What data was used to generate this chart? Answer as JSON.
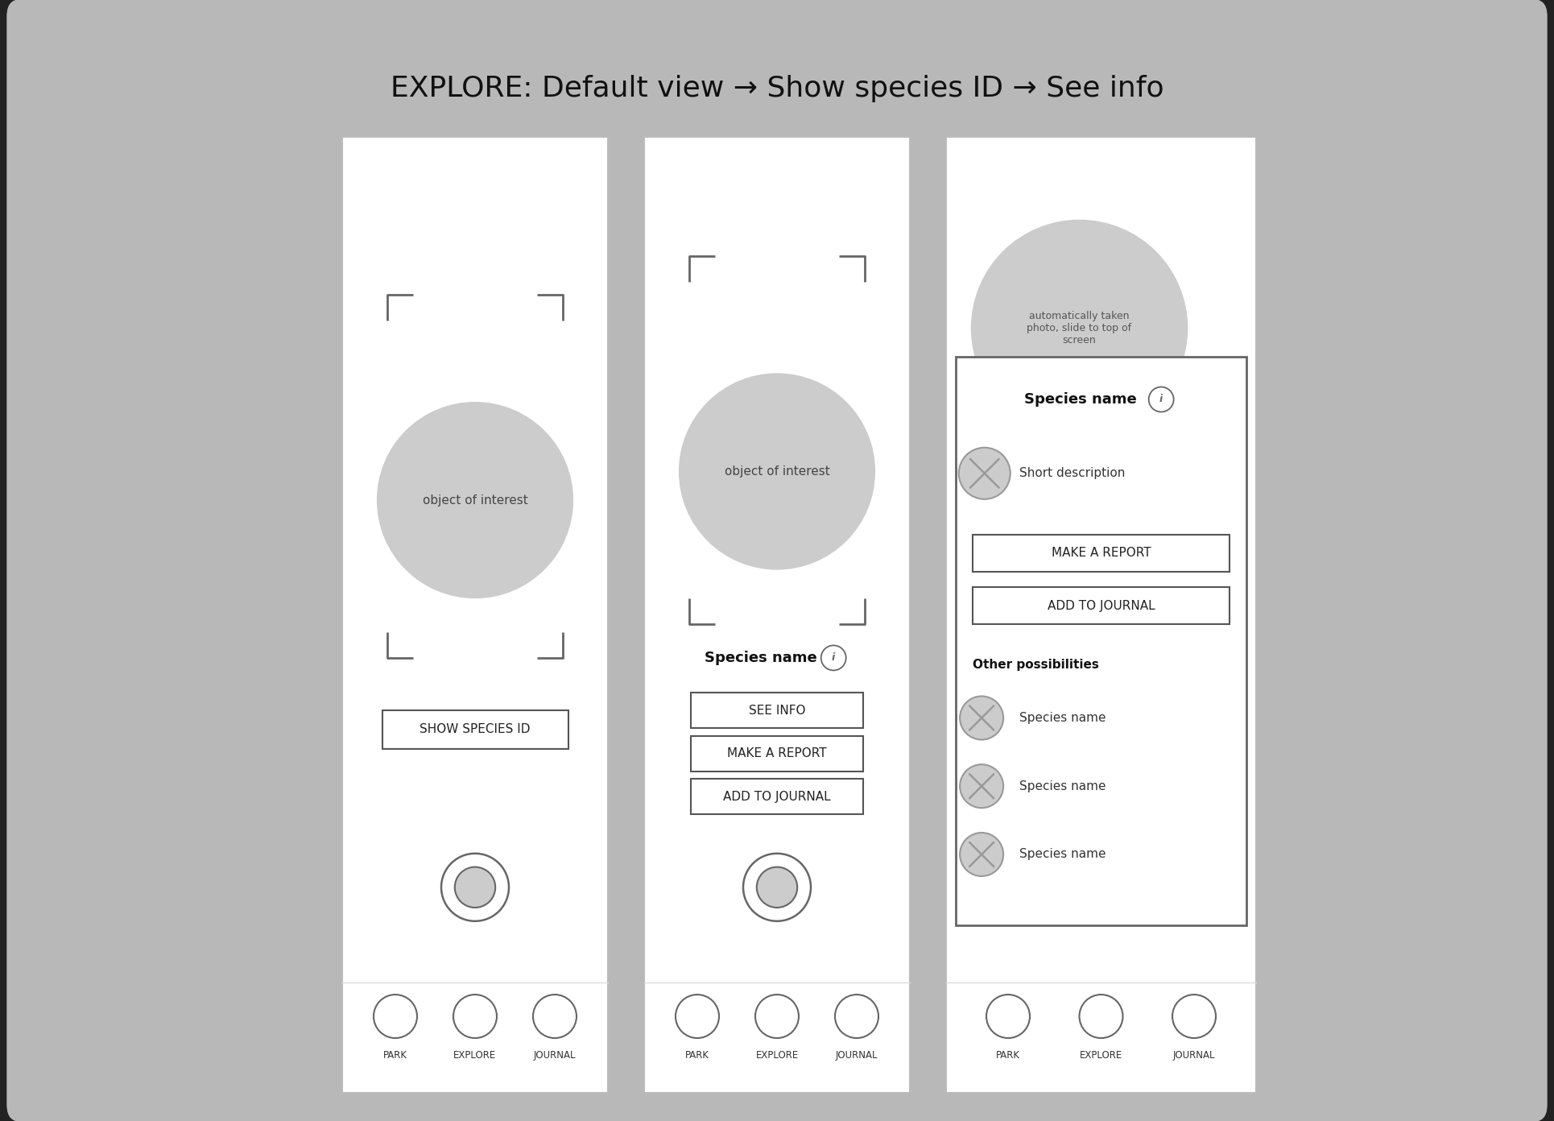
{
  "title": "EXPLORE: Default view → Show species ID → See info",
  "bg_color": "#b8b8b8",
  "tablet_bg": "#222222",
  "screen_bg": "#ffffff",
  "circle_fill": "#cccccc",
  "title_fontsize": 26,
  "nav_labels": [
    "PARK",
    "EXPLORE",
    "JOURNAL"
  ],
  "figw": 19.3,
  "figh": 13.92,
  "dpi": 100
}
